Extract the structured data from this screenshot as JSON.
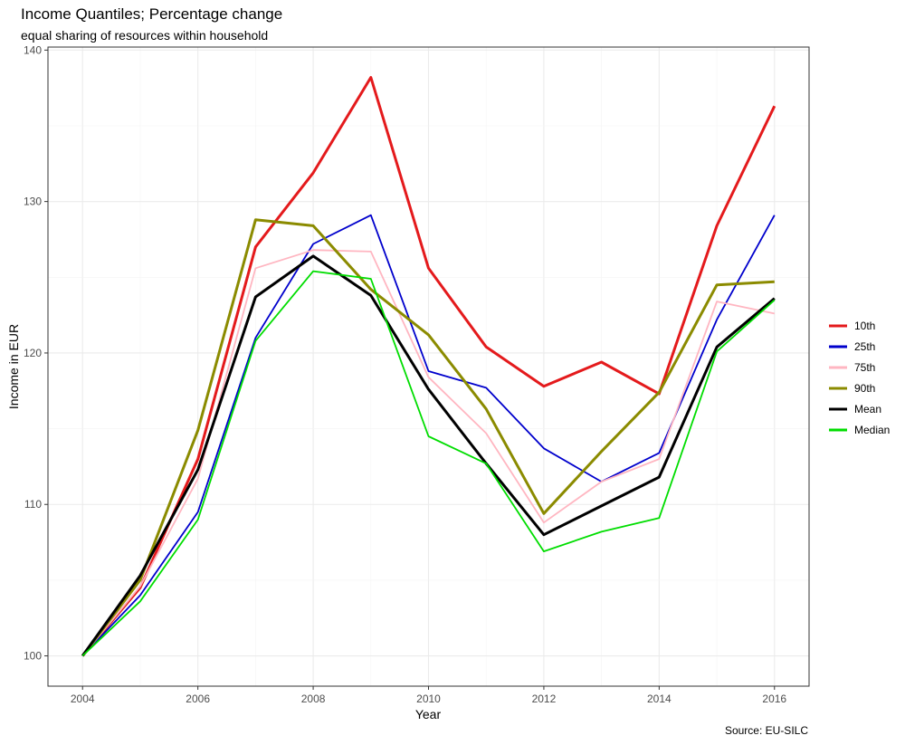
{
  "chart_data": {
    "type": "line",
    "title": "Income Quantiles; Percentage change",
    "subtitle": "equal sharing of resources within household",
    "xlabel": "Year",
    "ylabel": "Income in EUR",
    "caption": "Source: EU-SILC",
    "xlim": [
      2003.4,
      2016.6
    ],
    "ylim": [
      98.0,
      140.2
    ],
    "x_ticks": [
      2004,
      2006,
      2008,
      2010,
      2012,
      2014,
      2016
    ],
    "y_ticks": [
      100,
      110,
      120,
      130,
      140
    ],
    "grid": true,
    "legend_position": "right",
    "x": [
      2004,
      2005,
      2006,
      2007,
      2008,
      2009,
      2010,
      2011,
      2012,
      2013,
      2014,
      2015,
      2016
    ],
    "series": [
      {
        "name": "10th",
        "color": "#e41a1c",
        "thick": true,
        "values": [
          100.0,
          104.5,
          113.0,
          127.0,
          131.9,
          138.2,
          125.6,
          120.4,
          117.8,
          119.4,
          117.3,
          128.4,
          136.3
        ]
      },
      {
        "name": "25th",
        "color": "#0000cc",
        "thick": false,
        "values": [
          100.0,
          104.0,
          109.5,
          121.0,
          127.2,
          129.1,
          118.8,
          117.7,
          113.7,
          111.5,
          113.4,
          122.2,
          129.1
        ]
      },
      {
        "name": "75th",
        "color": "#ffb6c1",
        "thick": false,
        "values": [
          100.0,
          104.6,
          111.7,
          125.6,
          126.8,
          126.7,
          118.4,
          114.7,
          108.8,
          111.5,
          113.0,
          123.4,
          122.6
        ]
      },
      {
        "name": "90th",
        "color": "#8b8b00",
        "thick": true,
        "values": [
          100.0,
          105.0,
          114.9,
          128.8,
          128.4,
          124.2,
          121.2,
          116.3,
          109.4,
          113.5,
          117.4,
          124.5,
          124.7
        ]
      },
      {
        "name": "Mean",
        "color": "#000000",
        "thick": true,
        "values": [
          100.0,
          105.3,
          112.3,
          123.7,
          126.4,
          123.8,
          117.6,
          112.7,
          108.0,
          109.9,
          111.8,
          120.4,
          123.6
        ]
      },
      {
        "name": "Median",
        "color": "#00dd00",
        "thick": false,
        "values": [
          100.0,
          103.6,
          109.0,
          120.8,
          125.4,
          124.9,
          114.5,
          112.7,
          106.9,
          108.2,
          109.1,
          120.1,
          123.5
        ]
      }
    ]
  }
}
